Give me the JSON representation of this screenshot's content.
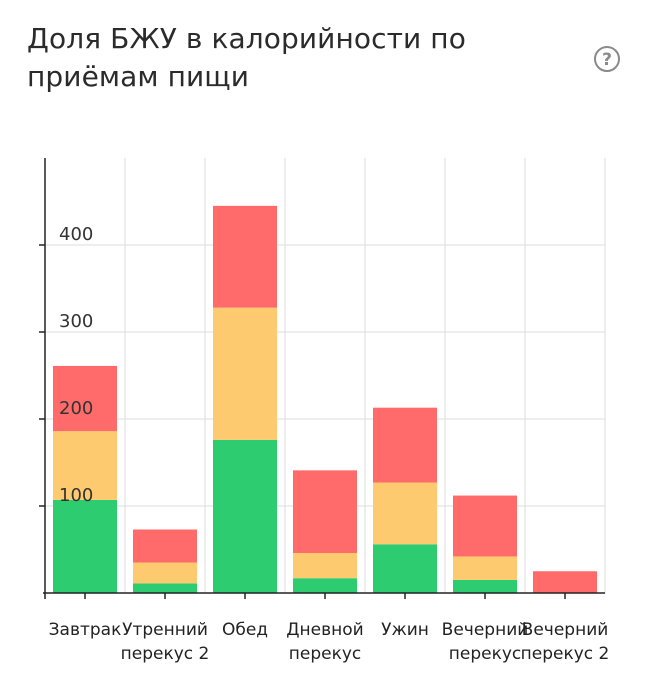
{
  "card": {
    "title": "Доля БЖУ в калорийности по приёмам пищи",
    "help_icon": "question-circle-icon"
  },
  "chart_data": {
    "type": "bar",
    "stacked": true,
    "title": "Доля БЖУ в калорийности по приёмам пищи",
    "xlabel": "",
    "ylabel": "",
    "ylim": [
      0,
      500
    ],
    "yticks": [
      100,
      200,
      300,
      400
    ],
    "grid": true,
    "categories": [
      [
        "Завтрак"
      ],
      [
        "Утренний",
        "перекус 2"
      ],
      [
        "Обед"
      ],
      [
        "Дневной",
        "перекус"
      ],
      [
        "Ужин"
      ],
      [
        "Вечерний",
        "перекус"
      ],
      [
        "Вечерний",
        "перекус 2"
      ]
    ],
    "series": [
      {
        "color": "#2ecc71",
        "values": [
          107,
          11,
          176,
          17,
          56,
          15,
          0
        ]
      },
      {
        "color": "#fdca6f",
        "values": [
          79,
          24,
          152,
          29,
          71,
          27,
          0
        ]
      },
      {
        "color": "#ff6b6b",
        "values": [
          75,
          38,
          117,
          95,
          86,
          70,
          25
        ]
      }
    ]
  }
}
